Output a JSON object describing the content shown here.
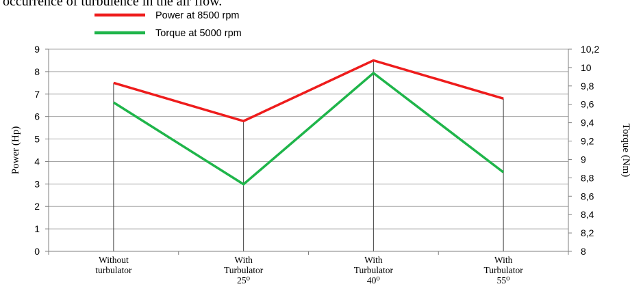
{
  "header_text": "occurrence of turbulence in the air flow.",
  "chart_data": {
    "type": "line",
    "categories": [
      [
        "Without",
        "turbulator"
      ],
      [
        "With",
        "Turbulator",
        "25⁰"
      ],
      [
        "With",
        "Turbulator",
        "40⁰"
      ],
      [
        "With",
        "Turbulator",
        "55⁰"
      ]
    ],
    "series": [
      {
        "name": "Power at 8500 rpm",
        "axis": "left",
        "color": "#ee1c1c",
        "values": [
          7.5,
          5.8,
          8.5,
          6.8
        ]
      },
      {
        "name": "Torque at 5000 rpm",
        "axis": "right",
        "color": "#1fb54a",
        "values": [
          9.62,
          8.73,
          9.94,
          8.86
        ]
      }
    ],
    "ylabel": "Power (Hp)",
    "y2label": "Torque (Nm)",
    "ylim": [
      0,
      9
    ],
    "y2lim": [
      8,
      10.2
    ],
    "yticks": [
      "0",
      "1",
      "2",
      "3",
      "4",
      "5",
      "6",
      "7",
      "8",
      "9"
    ],
    "y2ticks": [
      "8",
      "8,2",
      "8,4",
      "8,6",
      "8,8",
      "9",
      "9,2",
      "9,4",
      "9,6",
      "9,8",
      "10",
      "10,2"
    ],
    "grid": true,
    "drop_lines": true,
    "legend_position": "top"
  }
}
